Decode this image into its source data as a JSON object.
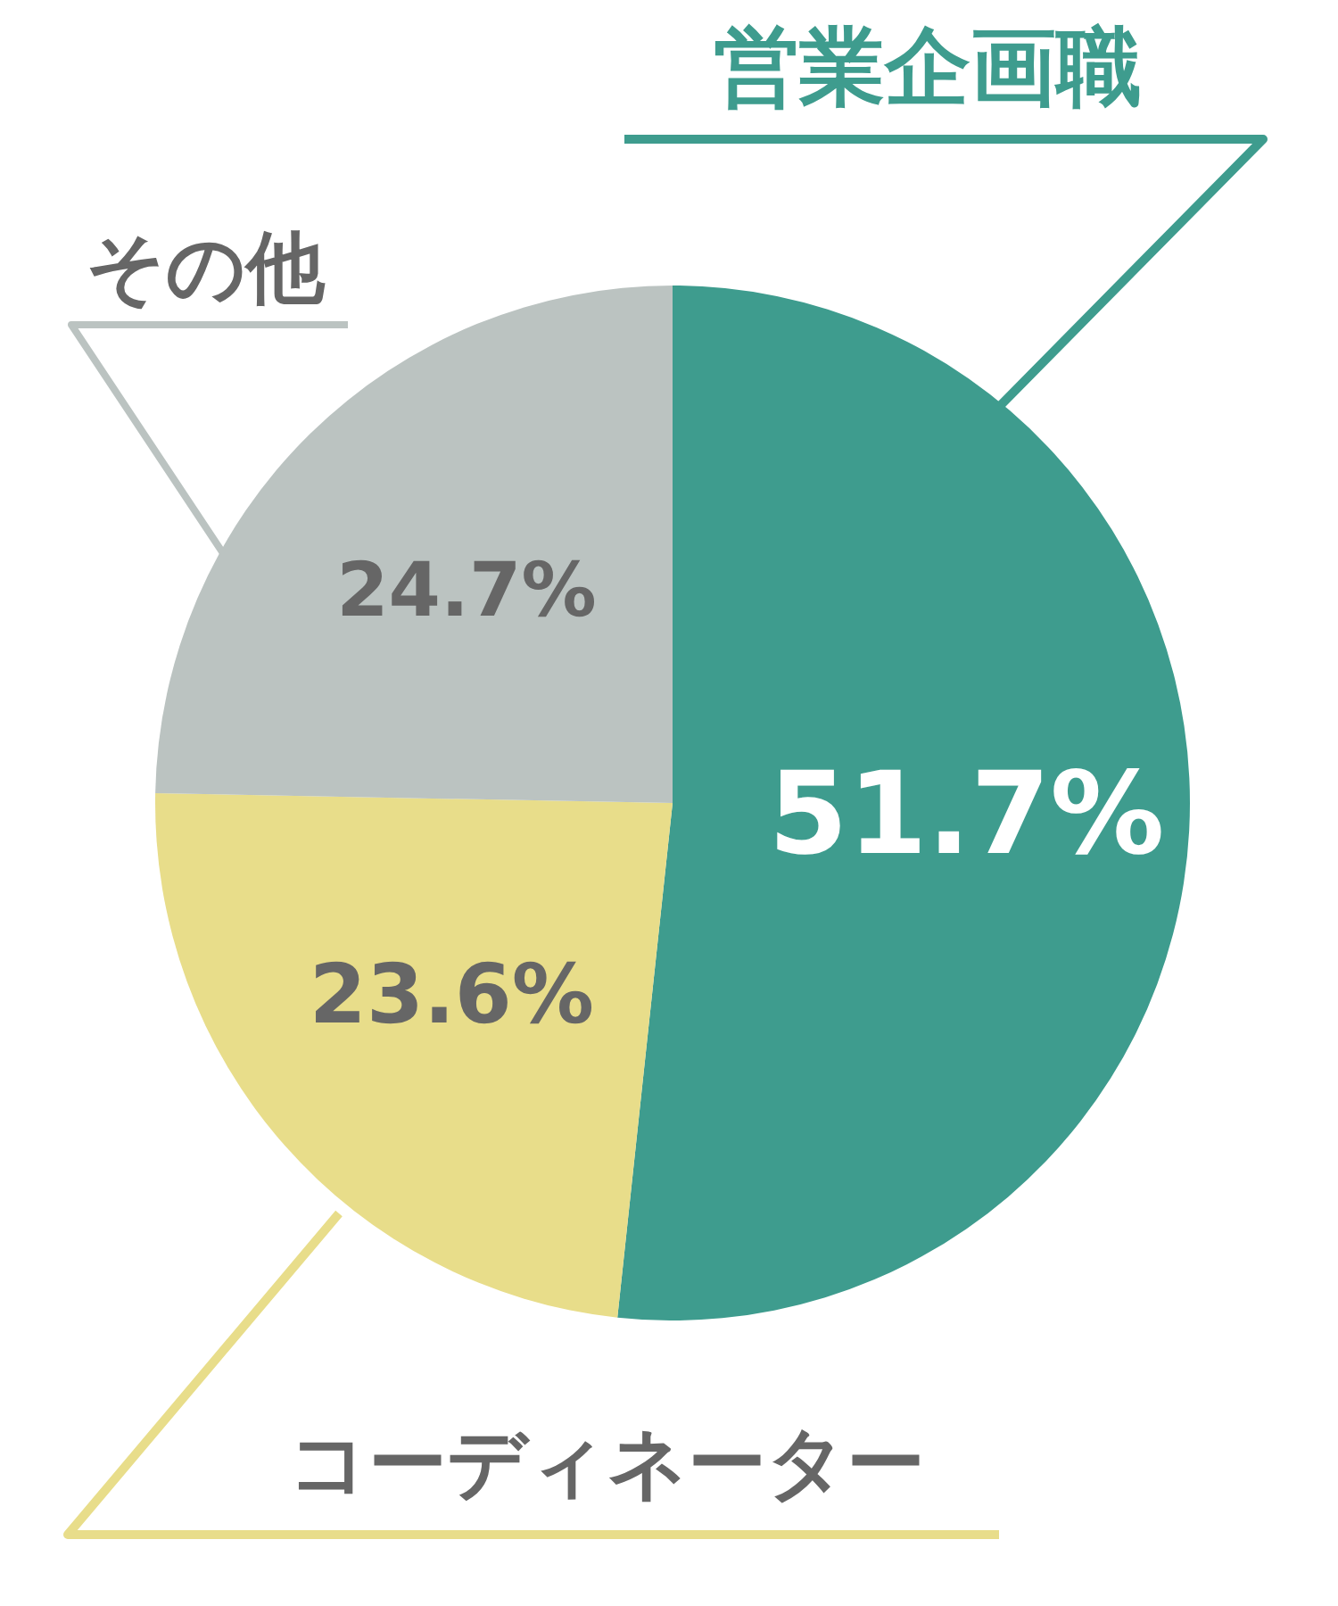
{
  "chart_data": {
    "type": "pie",
    "categories": [
      "営業企画職",
      "コーディネーター",
      "その他"
    ],
    "values": [
      51.7,
      23.6,
      24.7
    ],
    "colors": [
      "#3e9c8e",
      "#e8dd8a",
      "#bbc3c1"
    ],
    "value_labels": [
      "51.7%",
      "23.6%",
      "24.7%"
    ]
  }
}
